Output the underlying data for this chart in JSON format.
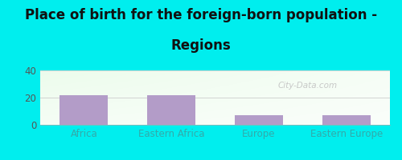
{
  "title_line1": "Place of birth for the foreign-born population -",
  "title_line2": "Regions",
  "categories": [
    "Africa",
    "Eastern Africa",
    "Europe",
    "Eastern Europe"
  ],
  "values": [
    22,
    22,
    7,
    7
  ],
  "bar_color": "#b39cc8",
  "bg_color": "#00eeee",
  "xlabel_color": "#33aaaa",
  "ylim": [
    0,
    40
  ],
  "yticks": [
    0,
    20,
    40
  ],
  "title_fontsize": 12,
  "tick_fontsize": 8.5,
  "watermark_text": "City-Data.com",
  "watermark_color": "#c0c0c0",
  "gradient_top_left": "#d6f0d6",
  "gradient_bottom_right": "#f5fff5"
}
